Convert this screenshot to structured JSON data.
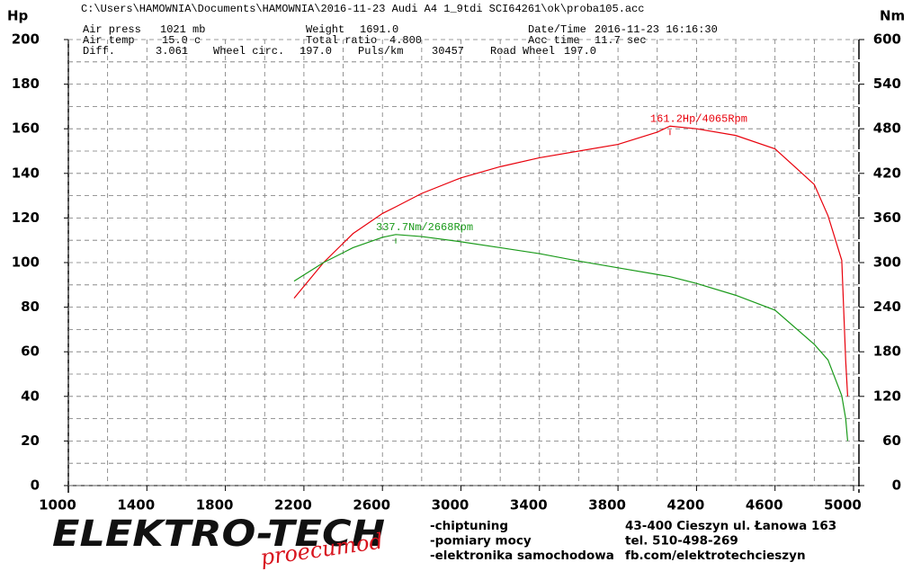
{
  "chart_data": {
    "type": "line",
    "title": "C:\\Users\\HAMOWNIA\\Documents\\HAMOWNIA\\2016-11-23 Audi A4  1_9tdi SCI64261\\ok\\proba105.acc",
    "info": [
      {
        "label": "Air press",
        "value": "1021 mb"
      },
      {
        "label": "Weight",
        "value": "1691.0"
      },
      {
        "label": "Date/Time",
        "value": "2016-11-23 16:16:30"
      },
      {
        "label": "Air temp",
        "value": "15.0 c"
      },
      {
        "label": "Total ratio",
        "value": "4.800"
      },
      {
        "label": "Acc time",
        "value": "11.7 sec"
      },
      {
        "label": "Diff.",
        "value": "3.061"
      },
      {
        "label": "Wheel circ.",
        "value": "197.0"
      },
      {
        "label": "Puls/km",
        "value": "30457"
      },
      {
        "label": "Road Wheel",
        "value": "197.0"
      }
    ],
    "y_label": "Hp",
    "y2_label": "Nm",
    "x": [
      2150,
      2300,
      2450,
      2600,
      2668,
      2800,
      3000,
      3200,
      3400,
      3600,
      3800,
      4000,
      4065,
      4200,
      4400,
      4600,
      4800,
      4870,
      4940,
      4960,
      4970
    ],
    "series": [
      {
        "name": "Hp",
        "color": "#e8000b",
        "axis": "y",
        "values": [
          84,
          100,
          113,
          122,
          125,
          131,
          138,
          143,
          147,
          150,
          153,
          158.5,
          161.2,
          160,
          157,
          151,
          135,
          121,
          101,
          56,
          40
        ]
      },
      {
        "name": "Nm",
        "color": "#1a9a1a",
        "axis": "y2",
        "values": [
          275,
          300,
          320,
          334,
          337.7,
          335,
          328,
          320,
          312,
          302,
          293,
          284,
          281,
          272,
          256,
          236,
          190,
          169,
          121,
          90,
          60
        ]
      }
    ],
    "annotations": [
      {
        "text": "161.2Hp/4065Rpm",
        "x": 4065,
        "y": 161.2,
        "axis": "y",
        "color": "#e8000b"
      },
      {
        "text": "337.7Nm/2668Rpm",
        "x": 2668,
        "y": 337.7,
        "axis": "y2",
        "color": "#1a9a1a"
      }
    ],
    "xlim": [
      1000,
      5000
    ],
    "xticks": [
      1000,
      1400,
      1800,
      2200,
      2600,
      3000,
      3400,
      3800,
      4200,
      4600,
      5000
    ],
    "ylim": [
      0,
      200
    ],
    "yticks": [
      0,
      20,
      40,
      60,
      80,
      100,
      120,
      140,
      160,
      180,
      200
    ],
    "y2lim": [
      0,
      600
    ],
    "y2ticks": [
      0,
      60,
      120,
      180,
      240,
      300,
      360,
      420,
      480,
      540,
      600
    ],
    "grid": true,
    "footer": {
      "logo": "ELEKTRO-TECH",
      "logo_sub": "proecumod",
      "services": [
        "-chiptuning",
        "-pomiary mocy",
        "-elektronika samochodowa"
      ],
      "contact": [
        "43-400 Cieszyn ul. Łanowa 163",
        "tel. 510-498-269",
        "fb.com/elektrotechcieszyn"
      ]
    }
  }
}
